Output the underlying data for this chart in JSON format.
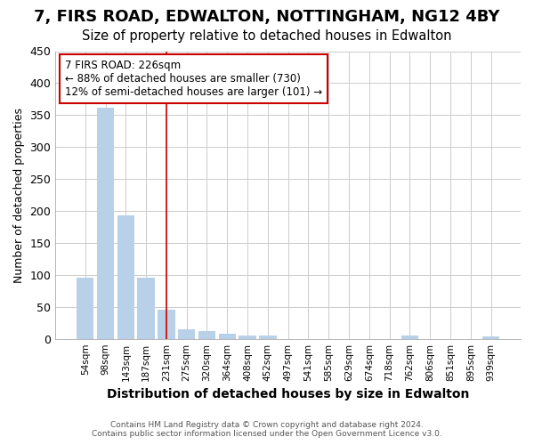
{
  "title": "7, FIRS ROAD, EDWALTON, NOTTINGHAM, NG12 4BY",
  "subtitle": "Size of property relative to detached houses in Edwalton",
  "xlabel": "Distribution of detached houses by size in Edwalton",
  "ylabel": "Number of detached properties",
  "footer_line1": "Contains HM Land Registry data © Crown copyright and database right 2024.",
  "footer_line2": "Contains public sector information licensed under the Open Government Licence v3.0.",
  "categories": [
    "54sqm",
    "98sqm",
    "143sqm",
    "187sqm",
    "231sqm",
    "275sqm",
    "320sqm",
    "364sqm",
    "408sqm",
    "452sqm",
    "497sqm",
    "541sqm",
    "585sqm",
    "629sqm",
    "674sqm",
    "718sqm",
    "762sqm",
    "806sqm",
    "851sqm",
    "895sqm",
    "939sqm"
  ],
  "values": [
    95,
    362,
    193,
    95,
    45,
    15,
    12,
    8,
    5,
    5,
    0,
    0,
    0,
    0,
    0,
    0,
    5,
    0,
    0,
    0,
    4
  ],
  "bar_color_normal": "#b8d0e8",
  "vline_index": 4,
  "annotation_text": "7 FIRS ROAD: 226sqm\n← 88% of detached houses are smaller (730)\n12% of semi-detached houses are larger (101) →",
  "annotation_box_color": "#ffffff",
  "annotation_box_edge": "#cc0000",
  "vline_color": "#cc0000",
  "ylim": [
    0,
    450
  ],
  "yticks": [
    0,
    50,
    100,
    150,
    200,
    250,
    300,
    350,
    400,
    450
  ],
  "background_color": "#ffffff",
  "axes_background": "#ffffff",
  "grid_color": "#cccccc",
  "title_fontsize": 13,
  "subtitle_fontsize": 10.5
}
